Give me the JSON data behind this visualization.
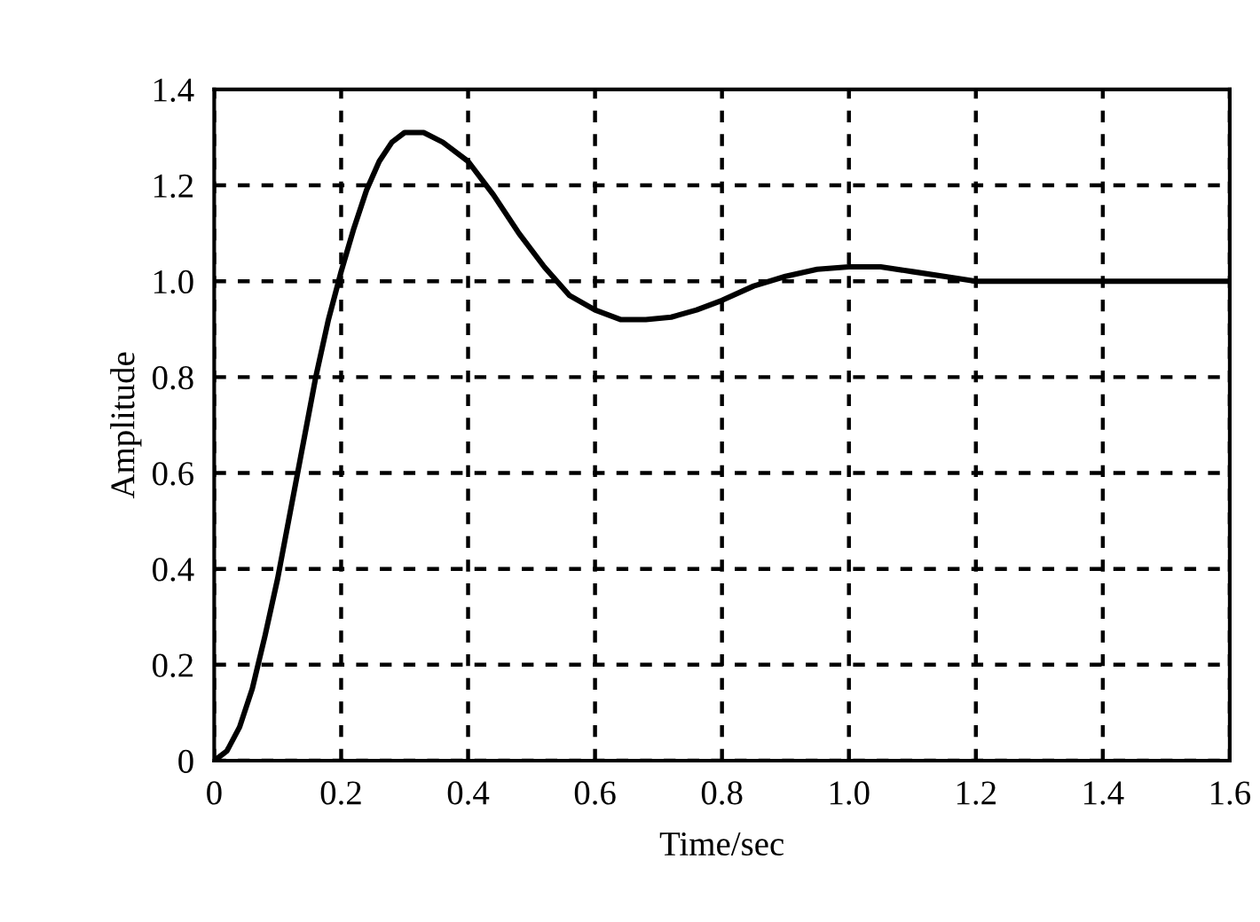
{
  "chart_data": {
    "type": "line",
    "xlabel": "Time/sec",
    "ylabel": "Amplitude",
    "x": [
      0,
      0.02,
      0.04,
      0.06,
      0.08,
      0.1,
      0.12,
      0.14,
      0.16,
      0.18,
      0.2,
      0.22,
      0.24,
      0.26,
      0.28,
      0.3,
      0.33,
      0.36,
      0.4,
      0.44,
      0.48,
      0.52,
      0.56,
      0.6,
      0.64,
      0.68,
      0.72,
      0.76,
      0.8,
      0.85,
      0.9,
      0.95,
      1.0,
      1.05,
      1.1,
      1.15,
      1.2,
      1.25,
      1.4,
      1.6
    ],
    "series": [
      {
        "color": "#000000",
        "values": [
          0,
          0.02,
          0.07,
          0.15,
          0.26,
          0.38,
          0.52,
          0.66,
          0.8,
          0.92,
          1.02,
          1.11,
          1.19,
          1.25,
          1.29,
          1.31,
          1.31,
          1.29,
          1.25,
          1.18,
          1.1,
          1.03,
          0.97,
          0.94,
          0.92,
          0.92,
          0.925,
          0.94,
          0.96,
          0.99,
          1.01,
          1.025,
          1.03,
          1.03,
          1.02,
          1.01,
          1.0,
          1.0,
          1.0,
          1.0
        ]
      }
    ],
    "xlim": [
      0,
      1.6
    ],
    "xticks": [
      0,
      0.2,
      0.4,
      0.6,
      0.8,
      {
        "value": 1.0,
        "label": "1.0"
      },
      1.2,
      1.4,
      1.6
    ],
    "ylim": [
      0,
      1.4
    ],
    "yticks": [
      0,
      0.2,
      0.4,
      0.6,
      0.8,
      {
        "value": 1.0,
        "label": "1.0"
      },
      1.2,
      1.4
    ],
    "grid": true,
    "line_style": "solid",
    "marker": "none"
  }
}
